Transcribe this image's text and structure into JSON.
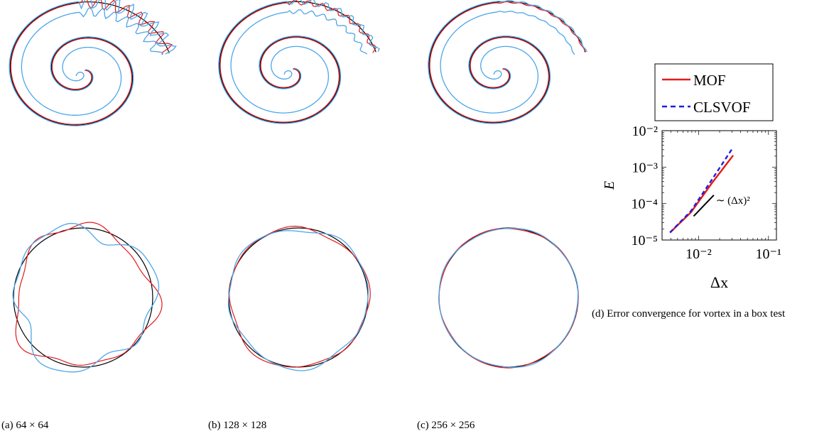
{
  "captions": {
    "a": "(a) 64 × 64",
    "b": "(b) 128 × 128",
    "c": "(c) 256 × 256",
    "d": "(d) Error convergence for vortex in a box test"
  },
  "legend": [
    "MOF",
    "CLSVOF"
  ],
  "colors": {
    "MOF": "#e31a1c",
    "CLSVOF": "#1f1fe0",
    "exact": "#000000",
    "interface": "#4da6e8"
  },
  "chart_data": {
    "type": "line",
    "xlabel": "Δx",
    "ylabel": "E",
    "log_x": true,
    "log_y": true,
    "xlim": [
      0.003,
      0.13
    ],
    "ylim": [
      1e-05,
      0.01
    ],
    "x_ticks": [
      "10⁻²",
      "10⁻¹"
    ],
    "y_ticks": [
      "10⁻⁵",
      "10⁻⁴",
      "10⁻³",
      "10⁻²"
    ],
    "series": [
      {
        "name": "MOF",
        "style": "solid",
        "x": [
          0.0039,
          0.0078,
          0.0156,
          0.03125
        ],
        "y": [
          1.6e-05,
          5.8e-05,
          0.00037,
          0.0021
        ]
      },
      {
        "name": "CLSVOF",
        "style": "dashed",
        "x": [
          0.0039,
          0.0078,
          0.0156,
          0.03125
        ],
        "y": [
          1.6e-05,
          6.3e-05,
          0.00046,
          0.0035
        ]
      }
    ],
    "reference": {
      "label": "∼ (Δx)²",
      "x": [
        0.0085,
        0.0165
      ],
      "y": [
        4.5e-05,
        0.00017
      ]
    }
  }
}
